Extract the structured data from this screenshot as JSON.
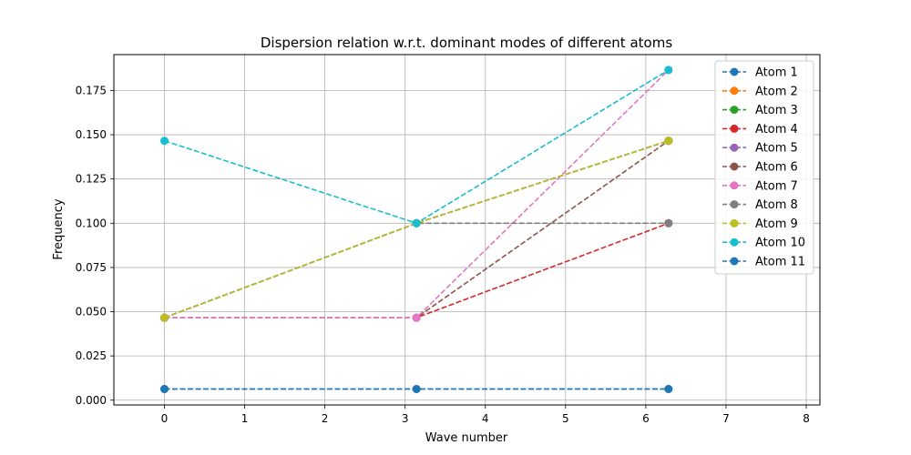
{
  "chart_data": {
    "type": "line",
    "title": "Dispersion relation w.r.t. dominant modes of different atoms",
    "xlabel": "Wave number",
    "ylabel": "Frequency",
    "xlim": [
      -0.63,
      8.17
    ],
    "ylim": [
      -0.0027,
      0.1953
    ],
    "xticks": [
      "0",
      "1",
      "2",
      "3",
      "4",
      "5",
      "6",
      "7",
      "8"
    ],
    "yticks": [
      "0.000",
      "0.025",
      "0.050",
      "0.075",
      "0.100",
      "0.125",
      "0.150",
      "0.175"
    ],
    "grid": true,
    "legend_position": "top-right",
    "x": [
      0,
      3.14159,
      6.28319
    ],
    "series": [
      {
        "name": "Atom 1",
        "color": "#1f77b4",
        "values": [
          0.0063,
          0.0063,
          0.0063
        ]
      },
      {
        "name": "Atom 2",
        "color": "#ff7f0e",
        "values": [
          0.0466,
          0.1,
          0.1466
        ]
      },
      {
        "name": "Atom 3",
        "color": "#2ca02c",
        "values": [
          0.0466,
          0.1,
          0.1466
        ]
      },
      {
        "name": "Atom 4",
        "color": "#d62728",
        "values": [
          0.0466,
          0.0466,
          0.1
        ]
      },
      {
        "name": "Atom 5",
        "color": "#9467bd",
        "values": [
          0.0466,
          0.1,
          0.1466
        ]
      },
      {
        "name": "Atom 6",
        "color": "#8c564b",
        "values": [
          0.0466,
          0.0466,
          0.1466
        ]
      },
      {
        "name": "Atom 7",
        "color": "#e377c2",
        "values": [
          0.0466,
          0.0466,
          0.1866
        ]
      },
      {
        "name": "Atom 8",
        "color": "#7f7f7f",
        "values": [
          0.0466,
          0.1,
          0.1
        ]
      },
      {
        "name": "Atom 9",
        "color": "#bcbd22",
        "values": [
          0.0466,
          0.1,
          0.1466
        ]
      },
      {
        "name": "Atom 10",
        "color": "#17becf",
        "values": [
          0.1466,
          0.1,
          0.1866
        ]
      },
      {
        "name": "Atom 11",
        "color": "#1f77b4",
        "values": [
          0.0063,
          0.0063,
          0.0063
        ]
      }
    ]
  }
}
